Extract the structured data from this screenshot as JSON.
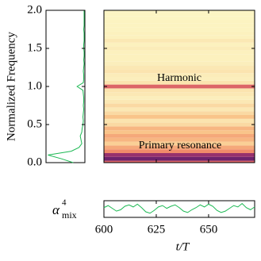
{
  "chart_data": [
    {
      "type": "spectrum",
      "ylabel": "Normalized Frequency",
      "color": "#1db954",
      "ylim": [
        0,
        2
      ],
      "yticks": [
        {
          "value": 0,
          "label": "0.0"
        },
        0.5,
        {
          "value": 1,
          "label": "1.0"
        },
        1.5,
        {
          "value": 2,
          "label": "2.0"
        }
      ],
      "xlim": [
        1,
        0
      ],
      "y": [
        0,
        0.05,
        0.1,
        0.15,
        0.2,
        0.25,
        0.3,
        0.35,
        0.4,
        0.45,
        0.5,
        0.55,
        0.6,
        0.65,
        0.7,
        0.75,
        0.8,
        0.85,
        0.9,
        0.95,
        1,
        1.05,
        1.1,
        1.15,
        1.2,
        1.25,
        1.3,
        1.35,
        1.4,
        1.45,
        1.5,
        1.55,
        1.6,
        1.65,
        1.7,
        1.75,
        1.8,
        1.85,
        1.9,
        1.95,
        2
      ],
      "x": [
        0.3,
        0.6,
        0.95,
        0.35,
        0.15,
        0.08,
        0.1,
        0.12,
        0.08,
        0.07,
        0.05,
        0.04,
        0.05,
        0.04,
        0.03,
        0.04,
        0.03,
        0.03,
        0.04,
        0.05,
        0.2,
        0.04,
        0.03,
        0.03,
        0.04,
        0.03,
        0.02,
        0.03,
        0.02,
        0.02,
        0.03,
        0.03,
        0.02,
        0.02,
        0.02,
        0.03,
        0.02,
        0.02,
        0.02,
        0.02,
        0.02
      ]
    },
    {
      "type": "heatmap",
      "annotations": [
        "Harmonic",
        "Primary resonance"
      ],
      "colormap": [
        "#fcf9c8",
        "#f9c48a",
        "#ef7d62",
        "#c0406f",
        "#5a1a6b"
      ],
      "frequencies": [
        0,
        0.05,
        0.1,
        0.15,
        0.2,
        0.25,
        0.3,
        0.35,
        0.4,
        0.45,
        0.5,
        0.55,
        0.6,
        0.65,
        0.7,
        0.75,
        0.8,
        0.85,
        0.9,
        0.95,
        1,
        1.05,
        1.1,
        1.15,
        1.2,
        1.25,
        1.3,
        1.35,
        1.4,
        1.45,
        1.5,
        1.55,
        1.6,
        1.65,
        1.7,
        1.75,
        1.8,
        1.85,
        1.9,
        1.95,
        2
      ],
      "intensities": [
        0.6,
        0.95,
        0.85,
        0.45,
        0.35,
        0.2,
        0.3,
        0.35,
        0.25,
        0.3,
        0.15,
        0.1,
        0.25,
        0.15,
        0.08,
        0.15,
        0.08,
        0.05,
        0.08,
        0.1,
        0.6,
        0.1,
        0.05,
        0.06,
        0.1,
        0.08,
        0.05,
        0.04,
        0.04,
        0.04,
        0.06,
        0.04,
        0.08,
        0.04,
        0.04,
        0.03,
        0.03,
        0.03,
        0.02,
        0.02,
        0.02
      ]
    },
    {
      "type": "line",
      "ylabel": {
        "symbol": "α",
        "superscript": "4",
        "subscript": "mix"
      },
      "xlabel": "t/T",
      "color": "#1db954",
      "xlim": [
        600,
        672
      ],
      "xticks": [
        600,
        625,
        650
      ],
      "ylim": [
        -1.2,
        1.2
      ],
      "x": [
        600,
        602,
        604,
        606,
        608,
        610,
        612,
        614,
        616,
        618,
        620,
        622,
        624,
        626,
        628,
        630,
        632,
        634,
        636,
        638,
        640,
        642,
        644,
        646,
        648,
        650,
        652,
        654,
        656,
        658,
        660,
        662,
        664,
        666,
        668,
        670,
        672
      ],
      "values": [
        0.2,
        0.5,
        0.1,
        -0.3,
        -0.1,
        0.4,
        0.6,
        0.3,
        0.7,
        0.2,
        -0.4,
        -0.6,
        -0.2,
        0.3,
        0.5,
        0.1,
        0.4,
        0.6,
        0.2,
        -0.3,
        -0.5,
        -0.1,
        0.2,
        0.6,
        0.3,
        0.7,
        0.4,
        -0.2,
        -0.5,
        -0.3,
        0.1,
        0.5,
        0.3,
        0.8,
        0.2,
        -0.1,
        0.3
      ]
    }
  ]
}
